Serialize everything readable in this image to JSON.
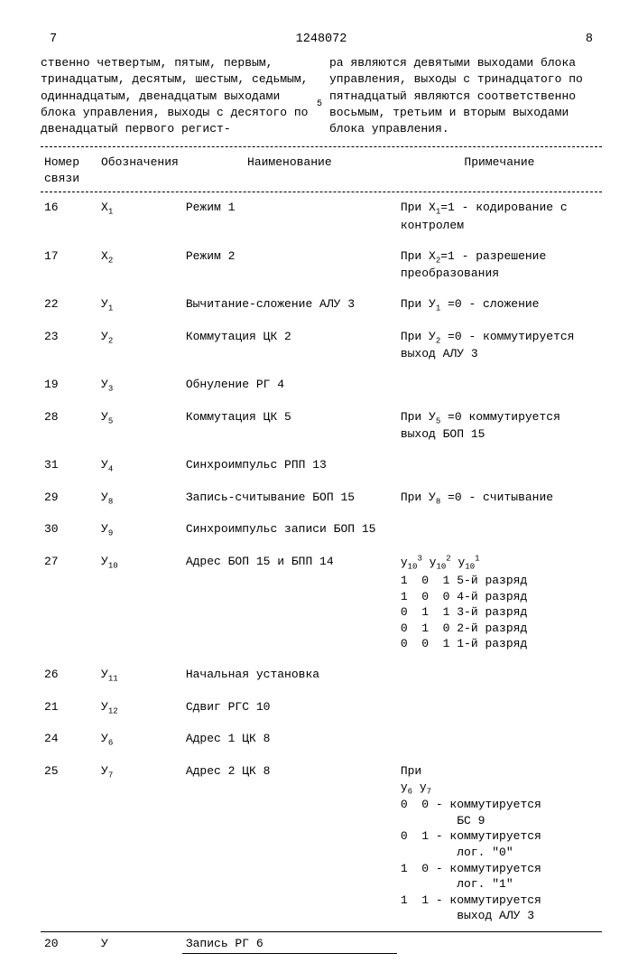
{
  "header": {
    "pageLeft": "7",
    "docNum": "1248072",
    "pageRight": "8"
  },
  "leftText": "ственно четвертым, пятым, первым, тринадцатым, десятым, шестым, седьмым, одиннадцатым, двенадцатым выходами блока управления, выходы с десятого по двенадцатый первого регист-",
  "rightText": "ра являются девятыми выходами блока управления, выходы с тринадцатого по пятнадцатый являются соответственно восьмым, третьим и вторым выходами блока управления.",
  "mark5": "5",
  "th": {
    "c1": "Номер связи",
    "c2": "Обозначения",
    "c3": "Наименование",
    "c4": "Примечание"
  },
  "rows": [
    {
      "n": "16",
      "s": "X",
      "si": "1",
      "name": "Режим 1",
      "note": "При X<sub>1</sub>=1 - кодирование с контролем"
    },
    {
      "n": "17",
      "s": "X",
      "si": "2",
      "name": "Режим 2",
      "note": "При X<sub>2</sub>=1 - разрешение преобразования"
    },
    {
      "n": "22",
      "s": "У",
      "si": "1",
      "name": "Вычитание-сложение АЛУ 3",
      "note": "При У<sub>1</sub> =0 - сложение"
    },
    {
      "n": "23",
      "s": "У",
      "si": "2",
      "name": "Коммутация ЦК 2",
      "note": "При У<sub>2</sub> =0 - коммутируется выход АЛУ 3"
    },
    {
      "n": "19",
      "s": "У",
      "si": "3",
      "name": "Обнуление РГ 4",
      "note": ""
    },
    {
      "n": "28",
      "s": "У",
      "si": "5",
      "name": "Коммутация ЦК 5",
      "note": "При У<sub>5</sub> =0 коммутируется выход БОП 15"
    },
    {
      "n": "31",
      "s": "У",
      "si": "4",
      "name": "Синхроимпульс РПП 13",
      "note": ""
    },
    {
      "n": "29",
      "s": "У",
      "si": "8",
      "name": "Запись-считывание БОП 15",
      "note": "При У<sub>8</sub> =0 - считывание"
    },
    {
      "n": "30",
      "s": "У",
      "si": "9",
      "name": "Синхроимпульс записи БОП 15",
      "note": ""
    },
    {
      "n": "27",
      "s": "У",
      "si": "10",
      "name": "Адрес БОП 15 и БПП 14",
      "note": "<span class='mono-block'>у<sub>10</sub><sup>3</sup> y<sub>10</sub><sup>2</sup> y<sub>10</sub><sup>1</sup>\n1  0  1 5-й разряд\n1  0  0 4-й разряд\n0  1  1 3-й разряд\n0  1  0 2-й разряд\n0  0  1 1-й разряд</span>"
    },
    {
      "n": "26",
      "s": "У",
      "si": "11",
      "name": "Начальная установка",
      "note": ""
    },
    {
      "n": "21",
      "s": "У",
      "si": "12",
      "name": "Сдвиг РГС 10",
      "note": ""
    },
    {
      "n": "24",
      "s": "У",
      "si": "6",
      "name": "Адрес 1 ЦК 8",
      "note": ""
    },
    {
      "n": "25",
      "s": "У",
      "si": "7",
      "name": "Адрес 2 ЦК 8",
      "note": "<span class='mono-block'>При\ny<sub>6</sub> y<sub>7</sub>\n0  0 - коммутируется\n        БС 9\n0  1 - коммутируется\n        лог. \"0\"\n1  0 - коммутируется\n        лог. \"1\"\n1  1 - коммутируется\n        выход АЛУ 3</span>"
    }
  ],
  "lastRow": {
    "n": "20",
    "s": "У",
    "name": "Запись РГ 6"
  }
}
